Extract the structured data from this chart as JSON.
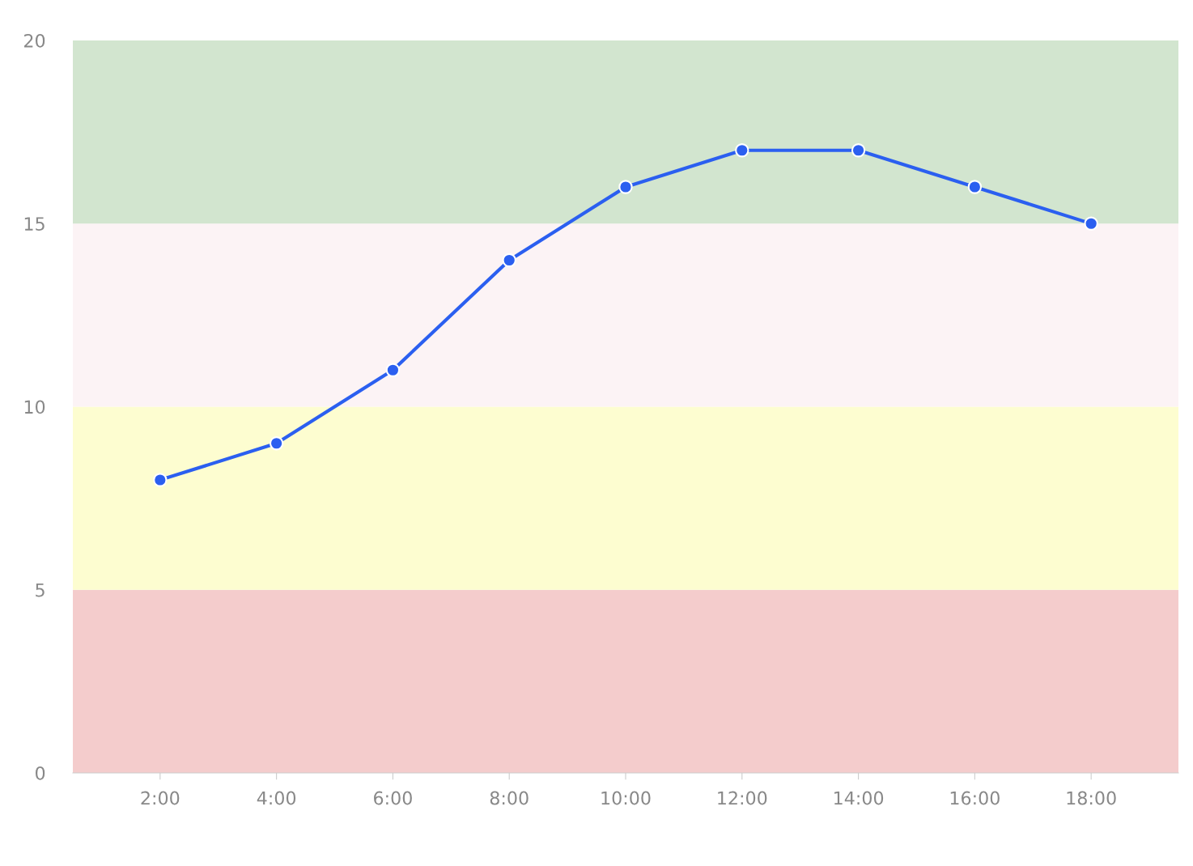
{
  "chart_data": {
    "type": "line",
    "categories": [
      "2:00",
      "4:00",
      "6:00",
      "8:00",
      "10:00",
      "12:00",
      "14:00",
      "16:00",
      "18:00"
    ],
    "series": [
      {
        "color": "#2b5ff0",
        "values": [
          8,
          9,
          11,
          14,
          16,
          17,
          17,
          16,
          15
        ]
      }
    ],
    "ylim": [
      0,
      20
    ],
    "yticks": [
      0,
      5,
      10,
      15,
      20
    ],
    "bands": [
      {
        "axis": "y",
        "from": 0,
        "to": 5,
        "color": "#f4cccc"
      },
      {
        "axis": "y",
        "from": 5,
        "to": 10,
        "color": "#fdfdd0"
      },
      {
        "axis": "y",
        "from": 10,
        "to": 15,
        "color": "#fcf3f5"
      },
      {
        "axis": "y",
        "from": 15,
        "to": 20,
        "color": "#d2e5cf"
      }
    ],
    "grid": false,
    "marker": "circle",
    "line_style": "solid"
  }
}
